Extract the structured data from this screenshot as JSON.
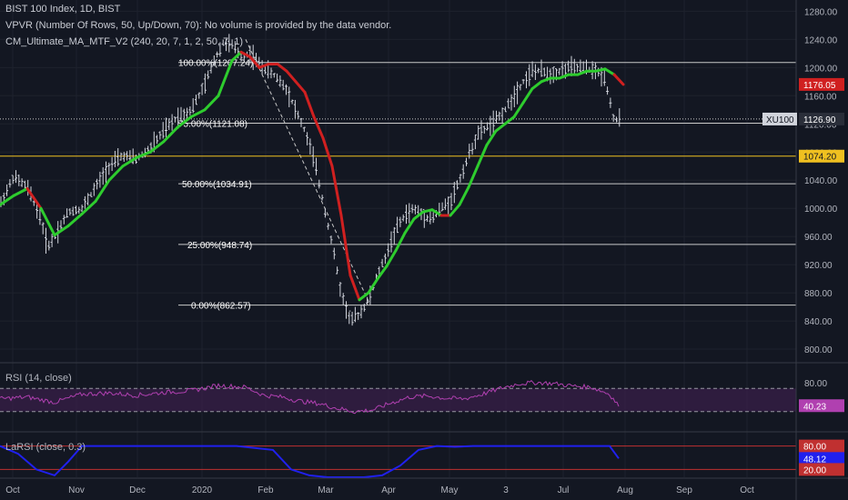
{
  "legend": {
    "line1": "BIST 100 Index, 1D, BIST",
    "line2": "VPVR (Number Of Rows, 50, Up/Down, 70): No volume is provided by the data vendor.",
    "line3": "CM_Ultimate_MA_MTF_V2 (240, 20, 7, 1, 2, 50, 7, 1)"
  },
  "colors": {
    "background": "#131722",
    "grid": "#1e222d",
    "candle": "#d1d4dc",
    "ma_up": "#2ecc2e",
    "ma_down": "#d02020",
    "fib_line": "#c8c8c8",
    "yellow_line": "#f0c020",
    "rsi": "#b040b0",
    "rsi_band": "#3a1f4a",
    "larsi": "#2020ee",
    "larsi_level": "#c03030"
  },
  "price_badges": {
    "ma_value": {
      "text": "1176.05",
      "value": 1176.05,
      "color": "#d02020"
    },
    "last_price": {
      "text": "1126.90",
      "value": 1126.9,
      "symbol": "XU100",
      "color": "#d1d4dc"
    },
    "horizontal_level": {
      "text": "1074.20",
      "value": 1074.2,
      "color": "#f0c020"
    }
  },
  "rsi_pane": {
    "label": "RSI (14, close)",
    "badge": "40.23",
    "badge_value": 40.23,
    "levels": [
      70,
      30
    ],
    "axis_labels": [
      "80.00",
      "40.00"
    ],
    "axis_values": [
      80,
      40
    ]
  },
  "larsi_pane": {
    "label": "LaRSI (close, 0.3)",
    "badges": [
      {
        "text": "80.00",
        "value": 80,
        "color": "#c03030"
      },
      {
        "text": "48.12",
        "value": 48.12,
        "color": "#2020ee"
      },
      {
        "text": "20.00",
        "value": 20,
        "color": "#c03030"
      }
    ]
  },
  "chart_data": {
    "type": "line",
    "y_axis_labels": [
      "1280.00",
      "1240.00",
      "1200.00",
      "1160.00",
      "1120.00",
      "1080.00",
      "1040.00",
      "1000.00",
      "960.00",
      "920.00",
      "880.00",
      "840.00",
      "800.00"
    ],
    "y_axis_values": [
      1280,
      1240,
      1200,
      1160,
      1120,
      1080,
      1040,
      1000,
      960,
      920,
      880,
      840,
      800
    ],
    "ylim": [
      782,
      1296
    ],
    "x_axis_labels": [
      "Oct",
      "Nov",
      "Dec",
      "2020",
      "Feb",
      "Mar",
      "Apr",
      "May",
      "3",
      "Jul",
      "Aug",
      "Sep",
      "Oct"
    ],
    "fib_levels": [
      {
        "label": "100.00%(1207.24)",
        "value": 1207.24
      },
      {
        "label": "75.00%(1121.08)",
        "value": 1121.08
      },
      {
        "label": "50.00%(1034.91)",
        "value": 1034.91
      },
      {
        "label": "25.00%(948.74)",
        "value": 948.74
      },
      {
        "label": "0.00%(862.57)",
        "value": 862.57
      }
    ],
    "price_series": {
      "name": "BIST 100 Index",
      "x": [
        0,
        15,
        30,
        45,
        52,
        60,
        75,
        90,
        105,
        120,
        135,
        150,
        165,
        180,
        195,
        210,
        225,
        235,
        245,
        255,
        265,
        275,
        285,
        295,
        305,
        315,
        325,
        335,
        345,
        355,
        365,
        375,
        385,
        395,
        405,
        415,
        425,
        435,
        445,
        455,
        465,
        475,
        485,
        495,
        505,
        515,
        525,
        535,
        545,
        555,
        565,
        575,
        585,
        595,
        605,
        615,
        625,
        635,
        645,
        655,
        665,
        675,
        680
      ],
      "y": [
        1005,
        1045,
        1030,
        985,
        945,
        960,
        995,
        1000,
        1030,
        1060,
        1075,
        1070,
        1085,
        1110,
        1130,
        1140,
        1175,
        1210,
        1235,
        1232,
        1215,
        1220,
        1205,
        1195,
        1185,
        1170,
        1140,
        1110,
        1070,
        1010,
        950,
        880,
        840,
        850,
        870,
        905,
        935,
        970,
        990,
        1000,
        990,
        985,
        1000,
        1010,
        1040,
        1075,
        1105,
        1115,
        1125,
        1140,
        1160,
        1180,
        1195,
        1195,
        1190,
        1195,
        1200,
        1200,
        1198,
        1195,
        1185,
        1125,
        1127
      ]
    },
    "ma_series": {
      "name": "CM_Ultimate_MA_MTF_V2",
      "x": [
        0,
        15,
        30,
        45,
        60,
        75,
        90,
        105,
        120,
        135,
        150,
        165,
        180,
        195,
        210,
        225,
        240,
        255,
        265,
        275,
        285,
        295,
        305,
        315,
        325,
        335,
        345,
        355,
        365,
        375,
        385,
        395,
        405,
        415,
        425,
        435,
        445,
        455,
        465,
        475,
        485,
        495,
        505,
        515,
        525,
        535,
        545,
        555,
        565,
        575,
        585,
        595,
        605,
        615,
        625,
        635,
        645,
        655,
        665,
        675,
        685
      ],
      "y": [
        1005,
        1018,
        1028,
        1000,
        962,
        975,
        992,
        1010,
        1040,
        1060,
        1072,
        1080,
        1095,
        1115,
        1130,
        1140,
        1160,
        1210,
        1222,
        1215,
        1200,
        1205,
        1205,
        1195,
        1180,
        1165,
        1130,
        1100,
        1060,
        990,
        905,
        870,
        880,
        900,
        918,
        940,
        965,
        985,
        995,
        998,
        990,
        990,
        1005,
        1030,
        1060,
        1090,
        1110,
        1120,
        1130,
        1150,
        1170,
        1180,
        1185,
        1185,
        1190,
        1190,
        1195,
        1195,
        1198,
        1190,
        1176
      ]
    },
    "ma_down_segments": [
      [
        30,
        45
      ],
      [
        265,
        355
      ],
      [
        355,
        395
      ],
      [
        485,
        495
      ],
      [
        675,
        685
      ]
    ],
    "rsi_series": {
      "name": "RSI (14, close)",
      "x": [
        0,
        30,
        60,
        90,
        120,
        150,
        180,
        210,
        240,
        270,
        290,
        310,
        330,
        350,
        370,
        390,
        410,
        430,
        450,
        470,
        490,
        510,
        530,
        550,
        570,
        590,
        610,
        630,
        650,
        670,
        680
      ],
      "y": [
        52,
        55,
        46,
        60,
        62,
        58,
        63,
        66,
        75,
        72,
        58,
        55,
        48,
        44,
        36,
        30,
        33,
        45,
        55,
        57,
        53,
        52,
        60,
        70,
        78,
        80,
        78,
        74,
        72,
        60,
        40.23
      ]
    },
    "larsi_series": {
      "name": "LaRSI (close, 0.3)",
      "x": [
        0,
        20,
        40,
        60,
        75,
        90,
        110,
        140,
        200,
        260,
        300,
        320,
        340,
        360,
        400,
        420,
        440,
        460,
        480,
        500,
        520,
        560,
        600,
        640,
        670,
        680
      ],
      "y": [
        80,
        60,
        20,
        5,
        40,
        80,
        80,
        80,
        80,
        80,
        70,
        20,
        5,
        0,
        0,
        5,
        30,
        70,
        80,
        78,
        80,
        80,
        80,
        80,
        80,
        48.12
      ]
    }
  }
}
